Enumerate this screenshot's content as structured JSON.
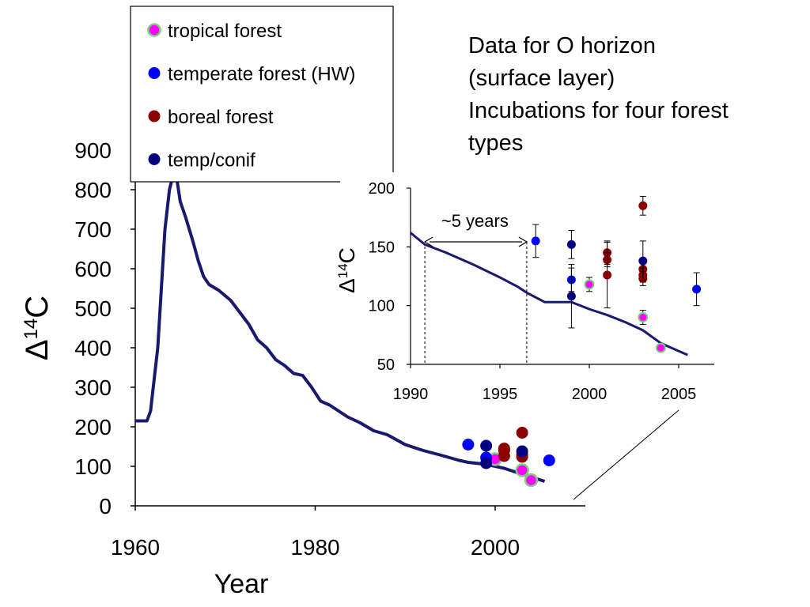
{
  "annotation": {
    "lines": [
      "Data for O horizon",
      "(surface layer)",
      "Incubations for four forest",
      "types"
    ]
  },
  "colors": {
    "curve": "#191970",
    "tropical_fill": "#ff00ff",
    "tropical_edge": "#7ccd7c",
    "temperate": "#0000ff",
    "boreal": "#8b0000",
    "temp_conif": "#000080"
  },
  "chart_data": [
    {
      "type": "line+scatter",
      "title": "",
      "xlabel": "Year",
      "ylabel": "Δ14C",
      "xlim": [
        1960,
        2010
      ],
      "ylim": [
        0,
        900
      ],
      "xticks": [
        1960,
        1980,
        2000
      ],
      "yticks": [
        0,
        100,
        200,
        300,
        400,
        500,
        600,
        700,
        800,
        900
      ],
      "grid": false,
      "legend_position": "top-left",
      "curve": {
        "x": [
          1960,
          1961.3,
          1961.7,
          1962.5,
          1963.3,
          1963.8,
          1964.3,
          1964.6,
          1965,
          1965.6,
          1966.4,
          1967,
          1967.6,
          1968.2,
          1969.3,
          1970.6,
          1971.6,
          1972.6,
          1973.6,
          1974.6,
          1975.6,
          1976.6,
          1977.6,
          1978.6,
          1979.6,
          1980.6,
          1981.6,
          1982.6,
          1983.6,
          1985,
          1986.5,
          1988,
          1990,
          1992,
          1994,
          1996,
          1997,
          1999,
          2001,
          2003,
          2005.5
        ],
        "y": [
          215,
          215,
          240,
          400,
          700,
          800,
          845,
          830,
          770,
          730,
          670,
          620,
          580,
          560,
          545,
          520,
          490,
          460,
          420,
          400,
          370,
          355,
          335,
          330,
          300,
          265,
          255,
          240,
          225,
          210,
          190,
          180,
          155,
          140,
          128,
          115,
          110,
          105,
          95,
          80,
          62
        ]
      },
      "series": [
        {
          "name": "tropical forest",
          "x": [
            2000,
            2003,
            2004
          ],
          "y": [
            118,
            90,
            65
          ]
        },
        {
          "name": "temperate forest (HW)",
          "x": [
            1997,
            1999,
            2006
          ],
          "y": [
            155,
            122,
            115
          ]
        },
        {
          "name": "boreal forest",
          "x": [
            2001,
            2001,
            2001,
            2003,
            2003,
            2003,
            2003
          ],
          "y": [
            145,
            140,
            126,
            185,
            130,
            126,
            124
          ]
        },
        {
          "name": "temp/conif",
          "x": [
            1999,
            1999,
            2003
          ],
          "y": [
            152,
            108,
            138
          ]
        }
      ]
    },
    {
      "type": "line+scatter",
      "title": "",
      "xlabel": "",
      "ylabel": "Δ14C",
      "xlim": [
        1990,
        2007
      ],
      "ylim": [
        50,
        200
      ],
      "xticks": [
        1990,
        1995,
        2000,
        2005
      ],
      "yticks": [
        50,
        100,
        150,
        200
      ],
      "grid": false,
      "annotation": "~5 years",
      "curve": {
        "x": [
          1990,
          1990.8,
          1992,
          1993.5,
          1995,
          1996,
          1996.5,
          1997,
          1997.5,
          1998,
          1999,
          2000,
          2001,
          2002,
          2003,
          2004,
          2005.5
        ],
        "y": [
          162,
          152,
          145,
          135,
          124,
          116,
          111,
          107,
          103,
          103,
          103,
          97,
          92,
          86,
          79,
          68,
          58
        ]
      },
      "series": [
        {
          "name": "tropical forest",
          "x": [
            2000,
            2003,
            2004
          ],
          "y": [
            118,
            90,
            64
          ],
          "err": [
            6,
            6,
            0
          ]
        },
        {
          "name": "temperate forest (HW)",
          "x": [
            1997,
            1999,
            2006
          ],
          "y": [
            155,
            122,
            114
          ],
          "err": [
            14,
            10,
            14
          ]
        },
        {
          "name": "boreal forest",
          "x": [
            2001,
            2001,
            2001,
            2003,
            2003,
            2003,
            2003
          ],
          "y": [
            145,
            139,
            126,
            185,
            131,
            126,
            123
          ],
          "err": [
            10,
            6,
            28,
            8,
            6,
            6,
            6
          ]
        },
        {
          "name": "temp/conif",
          "x": [
            1999,
            1999,
            2003
          ],
          "y": [
            152,
            108,
            138
          ],
          "err": [
            12,
            27,
            17
          ]
        }
      ]
    }
  ]
}
